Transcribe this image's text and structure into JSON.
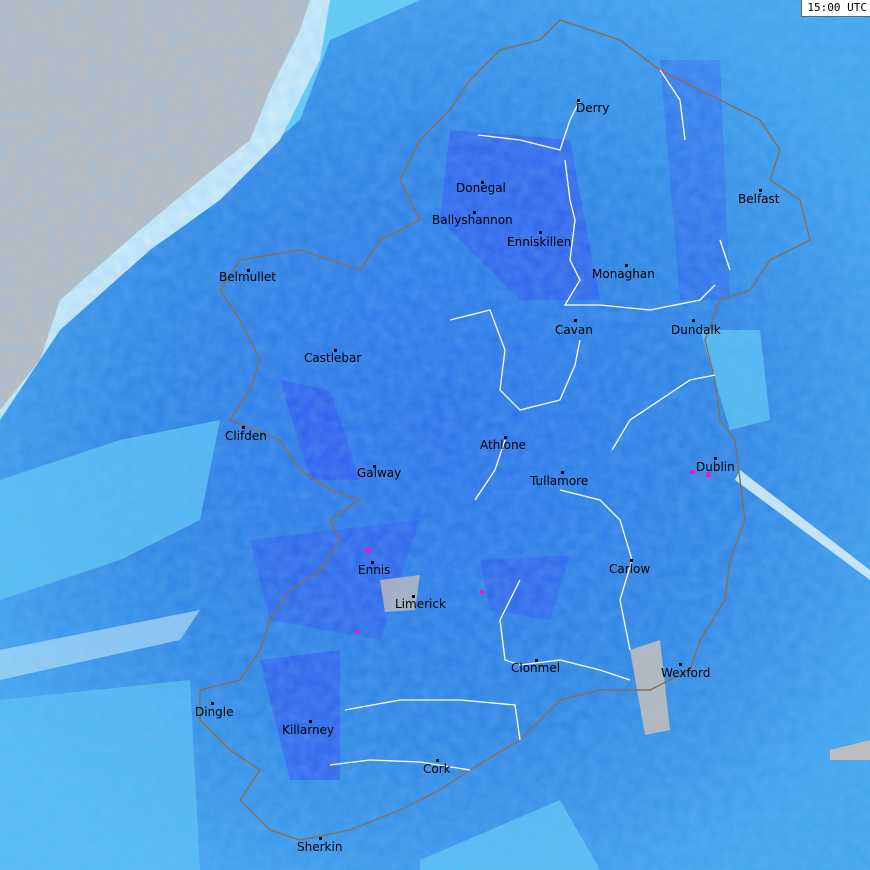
{
  "timestamp": "15:00 UTC",
  "colors": {
    "no_data": "#bdbdbd",
    "very_light": "#e6f6fb",
    "light": "#5fcdf5",
    "moderate": "#2a8be6",
    "heavy": "#2f4ef0",
    "very_heavy": "#7a2cf0",
    "extreme": "#e020d0",
    "coastline": "#8a6e55",
    "border": "#ffffff"
  },
  "cities": [
    {
      "name": "Derry"
    },
    {
      "name": "Donegal"
    },
    {
      "name": "Ballyshannon"
    },
    {
      "name": "Enniskillen"
    },
    {
      "name": "Belfast"
    },
    {
      "name": "Monaghan"
    },
    {
      "name": "Belmullet"
    },
    {
      "name": "Cavan"
    },
    {
      "name": "Dundalk"
    },
    {
      "name": "Castlebar"
    },
    {
      "name": "Clifden"
    },
    {
      "name": "Athlone"
    },
    {
      "name": "Dublin"
    },
    {
      "name": "Galway"
    },
    {
      "name": "Tullamore"
    },
    {
      "name": "Ennis"
    },
    {
      "name": "Carlow"
    },
    {
      "name": "Limerick"
    },
    {
      "name": "Clonmel"
    },
    {
      "name": "Wexford"
    },
    {
      "name": "Dingle"
    },
    {
      "name": "Killarney"
    },
    {
      "name": "Cork"
    },
    {
      "name": "Sherkin"
    }
  ]
}
